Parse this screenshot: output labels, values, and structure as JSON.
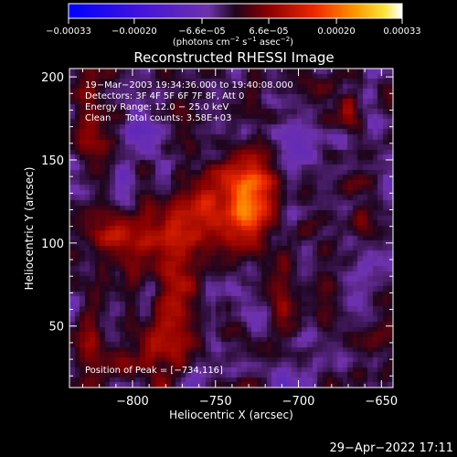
{
  "chart_data": {
    "type": "heatmap",
    "title": "Reconstructed RHESSI Image",
    "xlabel": "Heliocentric X (arcsec)",
    "ylabel": "Heliocentric Y (arcsec)",
    "xlim": [
      -838,
      -643
    ],
    "ylim": [
      13,
      205
    ],
    "x_ticks": [
      -800,
      -750,
      -700,
      -650
    ],
    "x_tick_labels": [
      "−800",
      "−750",
      "−700",
      "−650"
    ],
    "y_ticks": [
      50,
      100,
      150,
      200
    ],
    "y_tick_labels": [
      "50",
      "100",
      "150",
      "200"
    ],
    "colorbar": {
      "range": [
        -0.00033,
        0.00033
      ],
      "ticks": [
        -0.00033,
        -0.0002,
        -6.6e-05,
        6.6e-05,
        0.0002,
        0.00033
      ],
      "tick_labels": [
        "−0.00033",
        "−0.00020",
        "−6.6e−05",
        "6.6e−05",
        "0.00020",
        "0.00033"
      ],
      "unit_main": "(photons cm",
      "unit_exp1": "−2",
      "unit_mid": " s",
      "unit_exp2": "−1",
      "unit_end": " asec",
      "unit_exp3": "−2",
      "unit_close": ")"
    },
    "annotations": [
      "19−Mar−2003 19:34:36.000 to 19:40:08.000",
      "Detectors: 3F 4F 5F 6F 7F 8F, Att 0",
      "Energy Range: 12.0 − 25.0 keV",
      "Clean     Total counts: 3.58E+03"
    ],
    "peak_label": "Position of Peak = [−734,116]",
    "peak": [
      -734,
      116
    ],
    "sources": [
      {
        "x": -752,
        "y": 120,
        "sx": 14,
        "sy": 18,
        "a": 0.00012
      },
      {
        "x": -728,
        "y": 132,
        "sx": 10,
        "sy": 15,
        "a": 0.0002
      },
      {
        "x": -733,
        "y": 113,
        "sx": 8,
        "sy": 10,
        "a": 0.0001
      },
      {
        "x": -772,
        "y": 106,
        "sx": 11,
        "sy": 10,
        "a": 0.00011
      },
      {
        "x": -794,
        "y": 104,
        "sx": 9,
        "sy": 9,
        "a": 0.0001
      },
      {
        "x": -815,
        "y": 108,
        "sx": 8,
        "sy": 9,
        "a": 9e-05
      },
      {
        "x": -773,
        "y": 68,
        "sx": 8,
        "sy": 26,
        "a": 9e-05
      },
      {
        "x": -784,
        "y": 40,
        "sx": 12,
        "sy": 10,
        "a": 8e-05
      },
      {
        "x": -709,
        "y": 70,
        "sx": 5,
        "sy": 22,
        "a": 8e-05
      },
      {
        "x": -682,
        "y": 60,
        "sx": 7,
        "sy": 13,
        "a": 6e-05
      },
      {
        "x": -828,
        "y": 40,
        "sx": 7,
        "sy": 18,
        "a": 7e-05
      },
      {
        "x": -826,
        "y": 176,
        "sx": 9,
        "sy": 22,
        "a": 7e-05
      },
      {
        "x": -670,
        "y": 180,
        "sx": 4,
        "sy": 6,
        "a": 0.00012
      },
      {
        "x": -690,
        "y": 193,
        "sx": 6,
        "sy": 7,
        "a": 5e-05
      },
      {
        "x": -662,
        "y": 120,
        "sx": 5,
        "sy": 15,
        "a": 5e-05
      },
      {
        "x": -648,
        "y": 20,
        "sx": 5,
        "sy": 6,
        "a": 7e-05
      },
      {
        "x": -805,
        "y": 26,
        "sx": 8,
        "sy": 7,
        "a": 6e-05
      },
      {
        "x": -792,
        "y": 168,
        "sx": 7,
        "sy": 8,
        "a": -5e-05
      },
      {
        "x": -700,
        "y": 160,
        "sx": 10,
        "sy": 10,
        "a": -5e-05
      },
      {
        "x": -665,
        "y": 90,
        "sx": 8,
        "sy": 10,
        "a": -6e-05
      },
      {
        "x": -745,
        "y": 75,
        "sx": 9,
        "sy": 10,
        "a": -4e-05
      },
      {
        "x": -805,
        "y": 140,
        "sx": 7,
        "sy": 8,
        "a": -4e-05
      }
    ]
  },
  "footer": {
    "timestamp": "29−Apr−2022 17:11"
  }
}
